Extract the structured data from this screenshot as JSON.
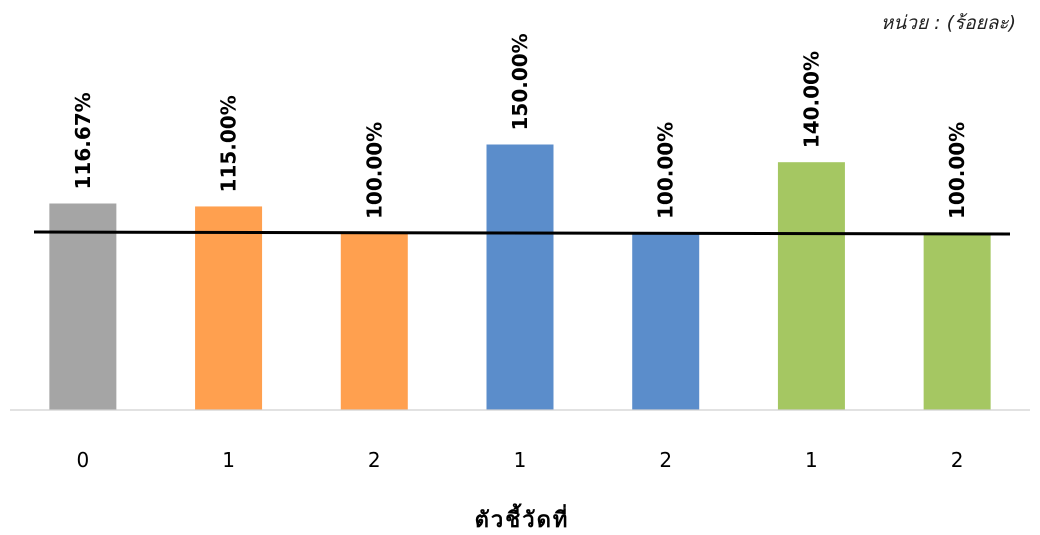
{
  "chart_data": {
    "type": "bar",
    "title": "",
    "unit_label": "หน่วย : (ร้อยละ)",
    "xlabel": "ตัวชี้วัดที่",
    "ylabel": "",
    "categories": [
      "0",
      "1",
      "2",
      "1",
      "2",
      "1",
      "2"
    ],
    "values": [
      116.67,
      115.0,
      100.0,
      150.0,
      100.0,
      140.0,
      100.0
    ],
    "data_labels": [
      "116.67%",
      "115.00%",
      "100.00%",
      "150.00%",
      "100.00%",
      "140.00%",
      "100.00%"
    ],
    "bar_colors": [
      "#A5A5A5",
      "#FFA04F",
      "#FFA04F",
      "#5B8DCB",
      "#5B8DCB",
      "#A5C762",
      "#A5C762"
    ],
    "reference_line": 100,
    "ylim": [
      0,
      215
    ],
    "grid": false,
    "legend": "none"
  }
}
